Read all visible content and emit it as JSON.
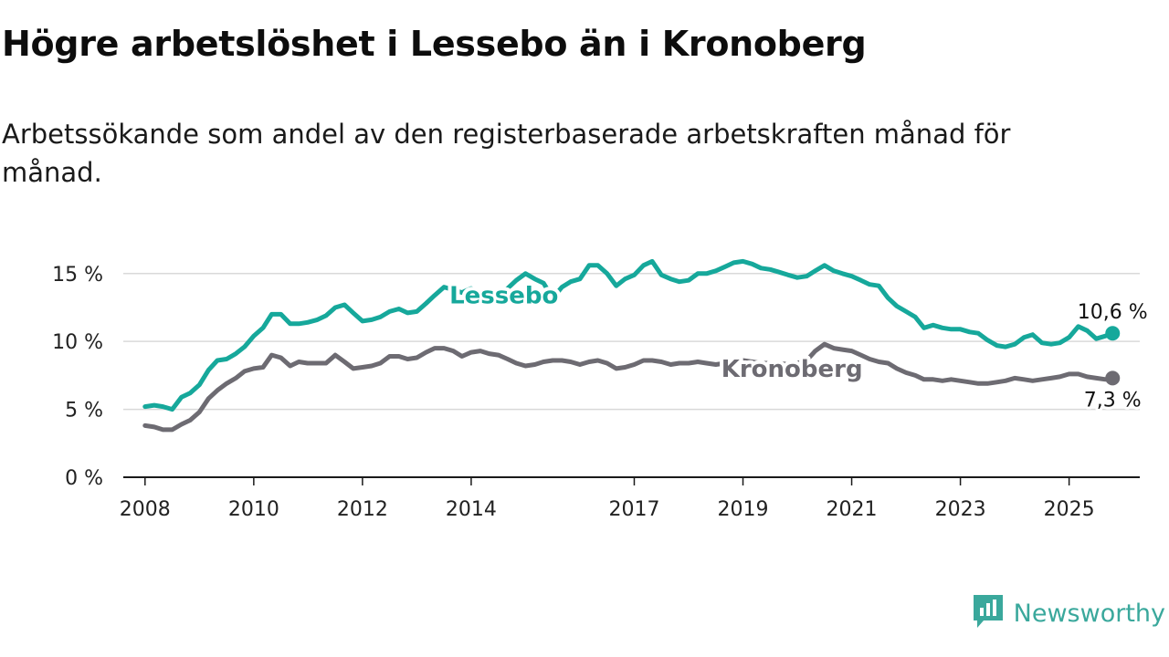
{
  "title": "Högre arbetslöshet i Lessebo än i Kronoberg",
  "subtitle": "Arbetssökande som andel av den registerbaserade arbetskraften månad för månad.",
  "brand": {
    "name": "Newsworthy",
    "icon": "newsworthy-logo-icon",
    "color": "#3aa89c"
  },
  "chart_data": {
    "type": "line",
    "x_axis": {
      "range": [
        2007.6,
        2026.3
      ],
      "ticks": [
        2008,
        2010,
        2012,
        2014,
        2017,
        2019,
        2021,
        2023,
        2025
      ],
      "tick_labels": [
        "2008",
        "2010",
        "2012",
        "2014",
        "2017",
        "2019",
        "2021",
        "2023",
        "2025"
      ]
    },
    "y_axis": {
      "range": [
        0,
        17
      ],
      "ticks": [
        0,
        5,
        10,
        15
      ],
      "tick_labels": [
        "0 %",
        "5 %",
        "10 %",
        "15 %"
      ]
    },
    "grid": true,
    "series": [
      {
        "name": "Lessebo",
        "color": "#16a89b",
        "end_label": "10,6 %",
        "end_value": 10.6,
        "points": [
          [
            2008.0,
            5.2
          ],
          [
            2008.17,
            5.3
          ],
          [
            2008.33,
            5.2
          ],
          [
            2008.5,
            5.0
          ],
          [
            2008.67,
            5.9
          ],
          [
            2008.83,
            6.2
          ],
          [
            2009.0,
            6.8
          ],
          [
            2009.17,
            7.9
          ],
          [
            2009.33,
            8.6
          ],
          [
            2009.5,
            8.7
          ],
          [
            2009.67,
            9.1
          ],
          [
            2009.83,
            9.6
          ],
          [
            2010.0,
            10.4
          ],
          [
            2010.17,
            11.0
          ],
          [
            2010.33,
            12.0
          ],
          [
            2010.5,
            12.0
          ],
          [
            2010.67,
            11.3
          ],
          [
            2010.83,
            11.3
          ],
          [
            2010.99,
            11.4
          ],
          [
            2011.17,
            11.6
          ],
          [
            2011.33,
            11.9
          ],
          [
            2011.5,
            12.5
          ],
          [
            2011.67,
            12.7
          ],
          [
            2011.83,
            12.1
          ],
          [
            2012.0,
            11.5
          ],
          [
            2012.17,
            11.6
          ],
          [
            2012.33,
            11.8
          ],
          [
            2012.5,
            12.2
          ],
          [
            2012.67,
            12.4
          ],
          [
            2012.83,
            12.1
          ],
          [
            2013.0,
            12.2
          ],
          [
            2013.17,
            12.8
          ],
          [
            2013.33,
            13.4
          ],
          [
            2013.5,
            14.0
          ],
          [
            2013.67,
            13.8
          ],
          [
            2013.83,
            13.6
          ],
          [
            2014.0,
            13.9
          ],
          [
            2014.17,
            13.5
          ],
          [
            2014.33,
            13.3
          ],
          [
            2014.5,
            13.4
          ],
          [
            2014.67,
            13.9
          ],
          [
            2014.83,
            14.5
          ],
          [
            2015.0,
            15.0
          ],
          [
            2015.17,
            14.6
          ],
          [
            2015.33,
            14.3
          ],
          [
            2015.5,
            13.2
          ],
          [
            2015.67,
            14.0
          ],
          [
            2015.83,
            14.4
          ],
          [
            2016.0,
            14.6
          ],
          [
            2016.17,
            15.6
          ],
          [
            2016.33,
            15.6
          ],
          [
            2016.5,
            15.0
          ],
          [
            2016.67,
            14.1
          ],
          [
            2016.83,
            14.6
          ],
          [
            2017.0,
            14.9
          ],
          [
            2017.17,
            15.6
          ],
          [
            2017.33,
            15.9
          ],
          [
            2017.5,
            14.9
          ],
          [
            2017.67,
            14.6
          ],
          [
            2017.83,
            14.4
          ],
          [
            2018.0,
            14.5
          ],
          [
            2018.17,
            15.0
          ],
          [
            2018.33,
            15.0
          ],
          [
            2018.5,
            15.2
          ],
          [
            2018.67,
            15.5
          ],
          [
            2018.83,
            15.8
          ],
          [
            2019.0,
            15.9
          ],
          [
            2019.17,
            15.7
          ],
          [
            2019.33,
            15.4
          ],
          [
            2019.5,
            15.3
          ],
          [
            2019.67,
            15.1
          ],
          [
            2019.83,
            14.9
          ],
          [
            2020.0,
            14.7
          ],
          [
            2020.17,
            14.8
          ],
          [
            2020.33,
            15.2
          ],
          [
            2020.5,
            15.6
          ],
          [
            2020.67,
            15.2
          ],
          [
            2020.83,
            15.0
          ],
          [
            2021.0,
            14.8
          ],
          [
            2021.17,
            14.5
          ],
          [
            2021.33,
            14.2
          ],
          [
            2021.5,
            14.1
          ],
          [
            2021.67,
            13.2
          ],
          [
            2021.83,
            12.6
          ],
          [
            2022.0,
            12.2
          ],
          [
            2022.17,
            11.8
          ],
          [
            2022.33,
            11.0
          ],
          [
            2022.5,
            11.2
          ],
          [
            2022.67,
            11.0
          ],
          [
            2022.83,
            10.9
          ],
          [
            2023.0,
            10.9
          ],
          [
            2023.17,
            10.7
          ],
          [
            2023.33,
            10.6
          ],
          [
            2023.5,
            10.1
          ],
          [
            2023.67,
            9.7
          ],
          [
            2023.83,
            9.6
          ],
          [
            2024.0,
            9.8
          ],
          [
            2024.17,
            10.3
          ],
          [
            2024.33,
            10.5
          ],
          [
            2024.5,
            9.9
          ],
          [
            2024.67,
            9.8
          ],
          [
            2024.83,
            9.9
          ],
          [
            2025.0,
            10.3
          ],
          [
            2025.17,
            11.1
          ],
          [
            2025.33,
            10.8
          ],
          [
            2025.5,
            10.2
          ],
          [
            2025.67,
            10.4
          ],
          [
            2025.8,
            10.6
          ]
        ]
      },
      {
        "name": "Kronoberg",
        "color": "#6d6b72",
        "end_label": "7,3 %",
        "end_value": 7.3,
        "points": [
          [
            2008.0,
            3.8
          ],
          [
            2008.17,
            3.7
          ],
          [
            2008.33,
            3.5
          ],
          [
            2008.5,
            3.5
          ],
          [
            2008.67,
            3.9
          ],
          [
            2008.83,
            4.2
          ],
          [
            2009.0,
            4.8
          ],
          [
            2009.17,
            5.8
          ],
          [
            2009.33,
            6.4
          ],
          [
            2009.5,
            6.9
          ],
          [
            2009.67,
            7.3
          ],
          [
            2009.83,
            7.8
          ],
          [
            2010.0,
            8.0
          ],
          [
            2010.17,
            8.1
          ],
          [
            2010.33,
            9.0
          ],
          [
            2010.5,
            8.8
          ],
          [
            2010.67,
            8.2
          ],
          [
            2010.83,
            8.5
          ],
          [
            2010.99,
            8.4
          ],
          [
            2011.17,
            8.4
          ],
          [
            2011.33,
            8.4
          ],
          [
            2011.5,
            9.0
          ],
          [
            2011.67,
            8.5
          ],
          [
            2011.83,
            8.0
          ],
          [
            2012.0,
            8.1
          ],
          [
            2012.17,
            8.2
          ],
          [
            2012.33,
            8.4
          ],
          [
            2012.5,
            8.9
          ],
          [
            2012.67,
            8.9
          ],
          [
            2012.83,
            8.7
          ],
          [
            2013.0,
            8.8
          ],
          [
            2013.17,
            9.2
          ],
          [
            2013.33,
            9.5
          ],
          [
            2013.5,
            9.5
          ],
          [
            2013.67,
            9.3
          ],
          [
            2013.83,
            8.9
          ],
          [
            2014.0,
            9.2
          ],
          [
            2014.17,
            9.3
          ],
          [
            2014.33,
            9.1
          ],
          [
            2014.5,
            9.0
          ],
          [
            2014.67,
            8.7
          ],
          [
            2014.83,
            8.4
          ],
          [
            2015.0,
            8.2
          ],
          [
            2015.17,
            8.3
          ],
          [
            2015.33,
            8.5
          ],
          [
            2015.5,
            8.6
          ],
          [
            2015.67,
            8.6
          ],
          [
            2015.83,
            8.5
          ],
          [
            2016.0,
            8.3
          ],
          [
            2016.17,
            8.5
          ],
          [
            2016.33,
            8.6
          ],
          [
            2016.5,
            8.4
          ],
          [
            2016.67,
            8.0
          ],
          [
            2016.83,
            8.1
          ],
          [
            2017.0,
            8.3
          ],
          [
            2017.17,
            8.6
          ],
          [
            2017.33,
            8.6
          ],
          [
            2017.5,
            8.5
          ],
          [
            2017.67,
            8.3
          ],
          [
            2017.83,
            8.4
          ],
          [
            2018.0,
            8.4
          ],
          [
            2018.17,
            8.5
          ],
          [
            2018.33,
            8.4
          ],
          [
            2018.5,
            8.3
          ],
          [
            2018.67,
            8.4
          ],
          [
            2018.83,
            8.5
          ],
          [
            2019.0,
            8.6
          ],
          [
            2019.17,
            8.5
          ],
          [
            2019.33,
            8.4
          ],
          [
            2019.5,
            8.4
          ],
          [
            2019.67,
            8.4
          ],
          [
            2019.83,
            8.3
          ],
          [
            2020.0,
            8.4
          ],
          [
            2020.17,
            8.6
          ],
          [
            2020.33,
            9.3
          ],
          [
            2020.5,
            9.8
          ],
          [
            2020.67,
            9.5
          ],
          [
            2020.83,
            9.4
          ],
          [
            2021.0,
            9.3
          ],
          [
            2021.17,
            9.0
          ],
          [
            2021.33,
            8.7
          ],
          [
            2021.5,
            8.5
          ],
          [
            2021.67,
            8.4
          ],
          [
            2021.83,
            8.0
          ],
          [
            2022.0,
            7.7
          ],
          [
            2022.17,
            7.5
          ],
          [
            2022.33,
            7.2
          ],
          [
            2022.5,
            7.2
          ],
          [
            2022.67,
            7.1
          ],
          [
            2022.83,
            7.2
          ],
          [
            2023.0,
            7.1
          ],
          [
            2023.17,
            7.0
          ],
          [
            2023.33,
            6.9
          ],
          [
            2023.5,
            6.9
          ],
          [
            2023.67,
            7.0
          ],
          [
            2023.83,
            7.1
          ],
          [
            2024.0,
            7.3
          ],
          [
            2024.17,
            7.2
          ],
          [
            2024.33,
            7.1
          ],
          [
            2024.5,
            7.2
          ],
          [
            2024.67,
            7.3
          ],
          [
            2024.83,
            7.4
          ],
          [
            2025.0,
            7.6
          ],
          [
            2025.17,
            7.6
          ],
          [
            2025.33,
            7.4
          ],
          [
            2025.5,
            7.3
          ],
          [
            2025.67,
            7.2
          ],
          [
            2025.8,
            7.3
          ]
        ]
      }
    ]
  }
}
